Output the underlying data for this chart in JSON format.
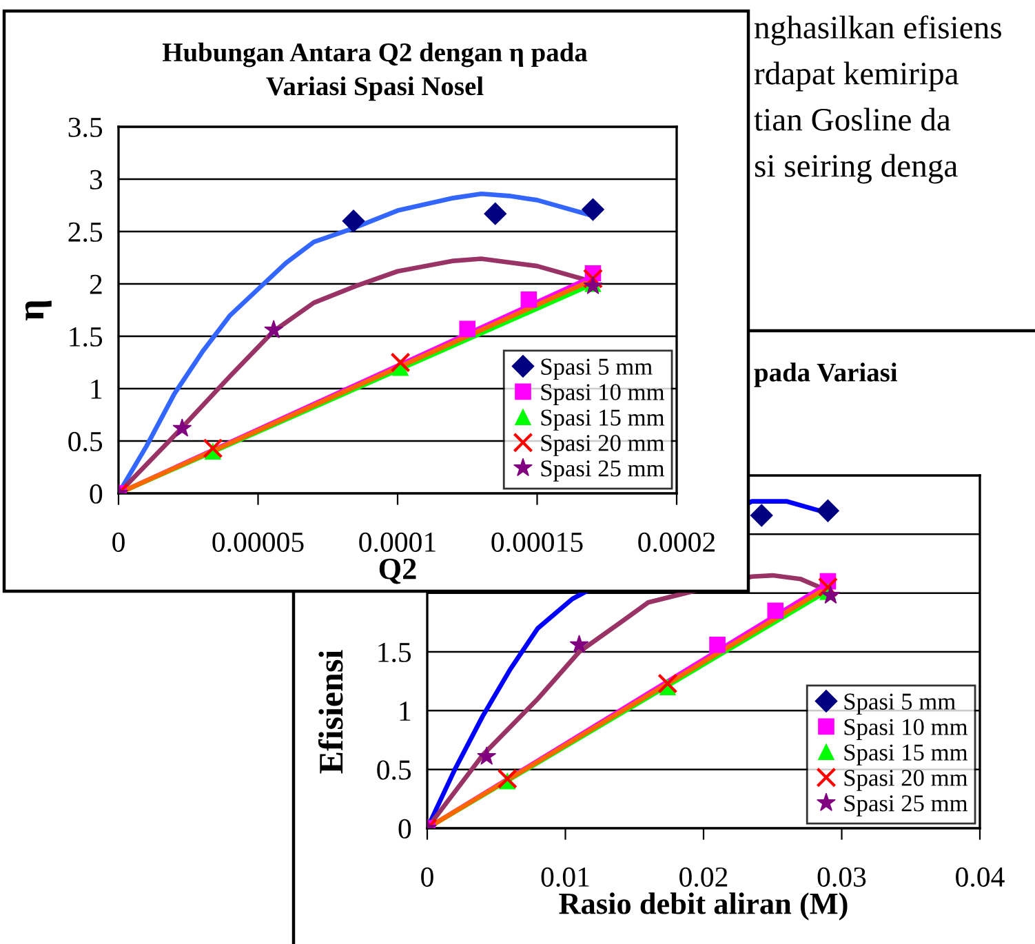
{
  "chart_data": [
    {
      "type": "scatter",
      "title": "pada Variasi",
      "xlabel": "Rasio debit aliran (M)",
      "ylabel": "Efisiensi",
      "xlim": [
        0,
        0.04
      ],
      "xticks": [
        0,
        0.01,
        0.02,
        0.03,
        0.04
      ],
      "ylim": [
        0,
        3
      ],
      "yticks": [
        0,
        0.5,
        1,
        1.5,
        {
          "value": 2,
          "label": null
        },
        {
          "value": 2.5,
          "label": null
        },
        {
          "value": 3,
          "label": null
        }
      ],
      "grid": "y",
      "legend": "bottom right",
      "annotations": [
        "nghasilkan efisiens",
        "rdapat kemiripa",
        "tian Gosline da",
        "si seiring denga"
      ],
      "series": [
        {
          "type": "line",
          "color": "#0000ff",
          "x": [
            0,
            0.002,
            0.004,
            0.006,
            0.008,
            0.0105,
            0.0235,
            0.026,
            0.029
          ],
          "values": [
            0,
            0.5,
            0.95,
            1.35,
            1.7,
            1.95,
            2.78,
            2.78,
            2.68
          ]
        },
        {
          "type": "line",
          "color": "#993366",
          "x": [
            0,
            0.004,
            0.008,
            0.011,
            0.014,
            0.016,
            0.0235,
            0.025,
            0.027,
            0.029
          ],
          "values": [
            0,
            0.62,
            1.1,
            1.5,
            1.75,
            1.92,
            2.14,
            2.15,
            2.12,
            2.02
          ]
        },
        {
          "type": "line",
          "color": "#ff00ff",
          "x": [
            0,
            0.029
          ],
          "values": [
            0,
            2.08
          ]
        },
        {
          "type": "line",
          "color": "#00ff00",
          "x": [
            0,
            0.029
          ],
          "values": [
            0,
            2.02
          ]
        },
        {
          "type": "line",
          "color": "#ff6600",
          "x": [
            0,
            0.029
          ],
          "values": [
            0,
            2.05
          ]
        },
        {
          "name": "Spasi 5 mm",
          "color": "#000080",
          "marker": "diamond",
          "x": [
            0.0242,
            0.029
          ],
          "values": [
            2.66,
            2.7
          ]
        },
        {
          "name": "Spasi 10 mm",
          "color": "#ff00ff",
          "marker": "square",
          "x": [
            0,
            0.021,
            0.0252,
            0.029
          ],
          "values": [
            0,
            1.56,
            1.85,
            2.1
          ]
        },
        {
          "name": "Spasi 15 mm",
          "color": "#00ff00",
          "marker": "triangle",
          "x": [
            0.0058,
            0.0174,
            0.029
          ],
          "values": [
            0.4,
            1.2,
            2.01
          ]
        },
        {
          "name": "Spasi 20 mm",
          "color": "#ff0000",
          "marker": "cross",
          "x": [
            0,
            0.0058,
            0.0174,
            0.029
          ],
          "values": [
            0,
            0.42,
            1.23,
            2.05
          ]
        },
        {
          "name": "Spasi 25 mm",
          "color": "#800080",
          "marker": "star",
          "x": [
            0,
            0.0043,
            0.011,
            0.0292
          ],
          "values": [
            0,
            0.61,
            1.56,
            1.98
          ]
        }
      ]
    },
    {
      "type": "scatter",
      "title": "Hubungan Antara Q2 dengan η pada Variasi Spasi Nosel",
      "xlabel": "Q2",
      "ylabel": "η",
      "xlim": [
        0,
        0.0002
      ],
      "xticks": [
        0,
        {
          "value": 5e-05,
          "label": "0.00005"
        },
        {
          "value": 0.0001,
          "label": "0.0001"
        },
        {
          "value": 0.00015,
          "label": "0.00015"
        },
        {
          "value": 0.0002,
          "label": "0.0002"
        }
      ],
      "ylim": [
        0,
        3.5
      ],
      "yticks": [
        0,
        0.5,
        1,
        1.5,
        2,
        2.5,
        3,
        3.5
      ],
      "grid": "y",
      "legend": "bottom right",
      "series": [
        {
          "type": "line",
          "color": "#3366ff",
          "x": [
            0,
            1e-05,
            2e-05,
            3e-05,
            4e-05,
            5e-05,
            6e-05,
            7e-05,
            8.4e-05,
            0.0001,
            0.00012,
            0.00013,
            0.00014,
            0.00015,
            0.00017
          ],
          "values": [
            0,
            0.45,
            0.95,
            1.35,
            1.7,
            1.95,
            2.2,
            2.4,
            2.53,
            2.7,
            2.82,
            2.86,
            2.84,
            2.8,
            2.65
          ]
        },
        {
          "type": "line",
          "color": "#993366",
          "x": [
            0,
            2e-05,
            4e-05,
            5.56e-05,
            7e-05,
            8.5e-05,
            0.0001,
            0.00012,
            0.00013,
            0.00015,
            0.00017
          ],
          "values": [
            0,
            0.55,
            1.12,
            1.55,
            1.82,
            1.98,
            2.12,
            2.22,
            2.24,
            2.17,
            2.02
          ]
        },
        {
          "type": "line",
          "color": "#ff00ff",
          "x": [
            0,
            0.00017
          ],
          "values": [
            0,
            2.07
          ]
        },
        {
          "type": "line",
          "color": "#00ff00",
          "x": [
            0,
            0.00017
          ],
          "values": [
            0,
            2.0
          ]
        },
        {
          "type": "line",
          "color": "#ff6600",
          "x": [
            0,
            0.00017
          ],
          "values": [
            0,
            2.04
          ]
        },
        {
          "name": "Spasi 5 mm",
          "color": "#000080",
          "marker": "diamond",
          "x": [
            8.42e-05,
            0.000135,
            0.00017
          ],
          "values": [
            2.6,
            2.67,
            2.71
          ]
        },
        {
          "name": "Spasi 10 mm",
          "color": "#ff00ff",
          "marker": "square",
          "x": [
            0,
            0.000125,
            0.000147,
            0.00017
          ],
          "values": [
            0,
            1.57,
            1.85,
            2.1
          ]
        },
        {
          "name": "Spasi 15 mm",
          "color": "#00ff00",
          "marker": "triangle",
          "x": [
            3.38e-05,
            0.000101,
            0.00017
          ],
          "values": [
            0.4,
            1.2,
            2.0
          ]
        },
        {
          "name": "Spasi 20 mm",
          "color": "#ff0000",
          "marker": "cross",
          "x": [
            0,
            3.38e-05,
            0.000101,
            0.00017
          ],
          "values": [
            0,
            0.43,
            1.25,
            2.05
          ]
        },
        {
          "name": "Spasi 25 mm",
          "color": "#800080",
          "marker": "star",
          "x": [
            0,
            2.28e-05,
            5.56e-05,
            0.00017
          ],
          "values": [
            0,
            0.62,
            1.56,
            1.98
          ]
        }
      ]
    }
  ]
}
